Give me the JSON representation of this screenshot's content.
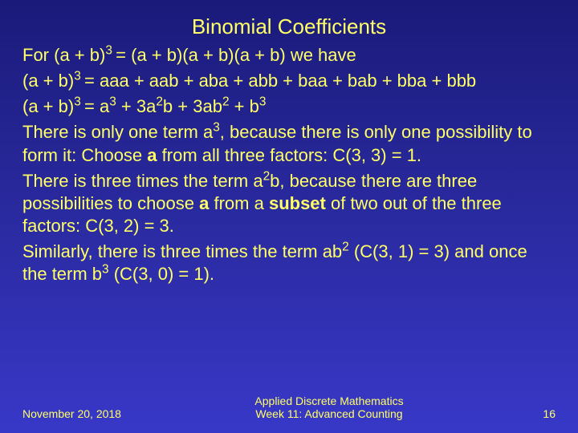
{
  "colors": {
    "background_gradient": [
      "#1a1a7a",
      "#2a2aa0",
      "#3838c8"
    ],
    "text": "#ffff66"
  },
  "typography": {
    "title_fontsize": 26,
    "body_fontsize": 22,
    "footer_fontsize": 14,
    "font_family": "Arial"
  },
  "title": "Binomial Coefficients",
  "body": {
    "line1_prefix": "For (a + b)",
    "line1_exp": "3 ",
    "line1_rest": "= (a + b)(a + b)(a + b) we have",
    "line2_prefix": "(a + b)",
    "line2_exp": "3 ",
    "line2_rest": "= aaa + aab + aba + abb + baa + bab + bba + bbb",
    "line3_prefix": "(a + b)",
    "line3_exp": "3 ",
    "line3_eq": "= a",
    "line3_a3": "3",
    "line3_p1": " + 3a",
    "line3_a2": "2",
    "line3_p2": "b + 3ab",
    "line3_b2": "2",
    "line3_p3": " + b",
    "line3_b3": "3",
    "line4_a": "There is only one term a",
    "line4_sup": "3",
    "line4_b": ", because there is only one possibility to form it: Choose ",
    "line4_bold": "a",
    "line4_c": " from all three factors: C(3, 3) = 1.",
    "line5_a": "There is three times the term a",
    "line5_sup": "2",
    "line5_b": "b, because there are three possibilities to choose ",
    "line5_bold1": "a",
    "line5_c": " from a ",
    "line5_bold2": "subset",
    "line5_d": " of two out of the three factors: C(3, 2) = 3.",
    "line6_a": "Similarly, there is three times the term ab",
    "line6_sup1": "2",
    "line6_b": " (C(3, 1) = 3) and once the term b",
    "line6_sup2": "3",
    "line6_c": " (C(3, 0) = 1)."
  },
  "footer": {
    "date": "November 20, 2018",
    "course_line1": "Applied Discrete Mathematics",
    "course_line2": "Week 11: Advanced Counting",
    "page": "16"
  }
}
